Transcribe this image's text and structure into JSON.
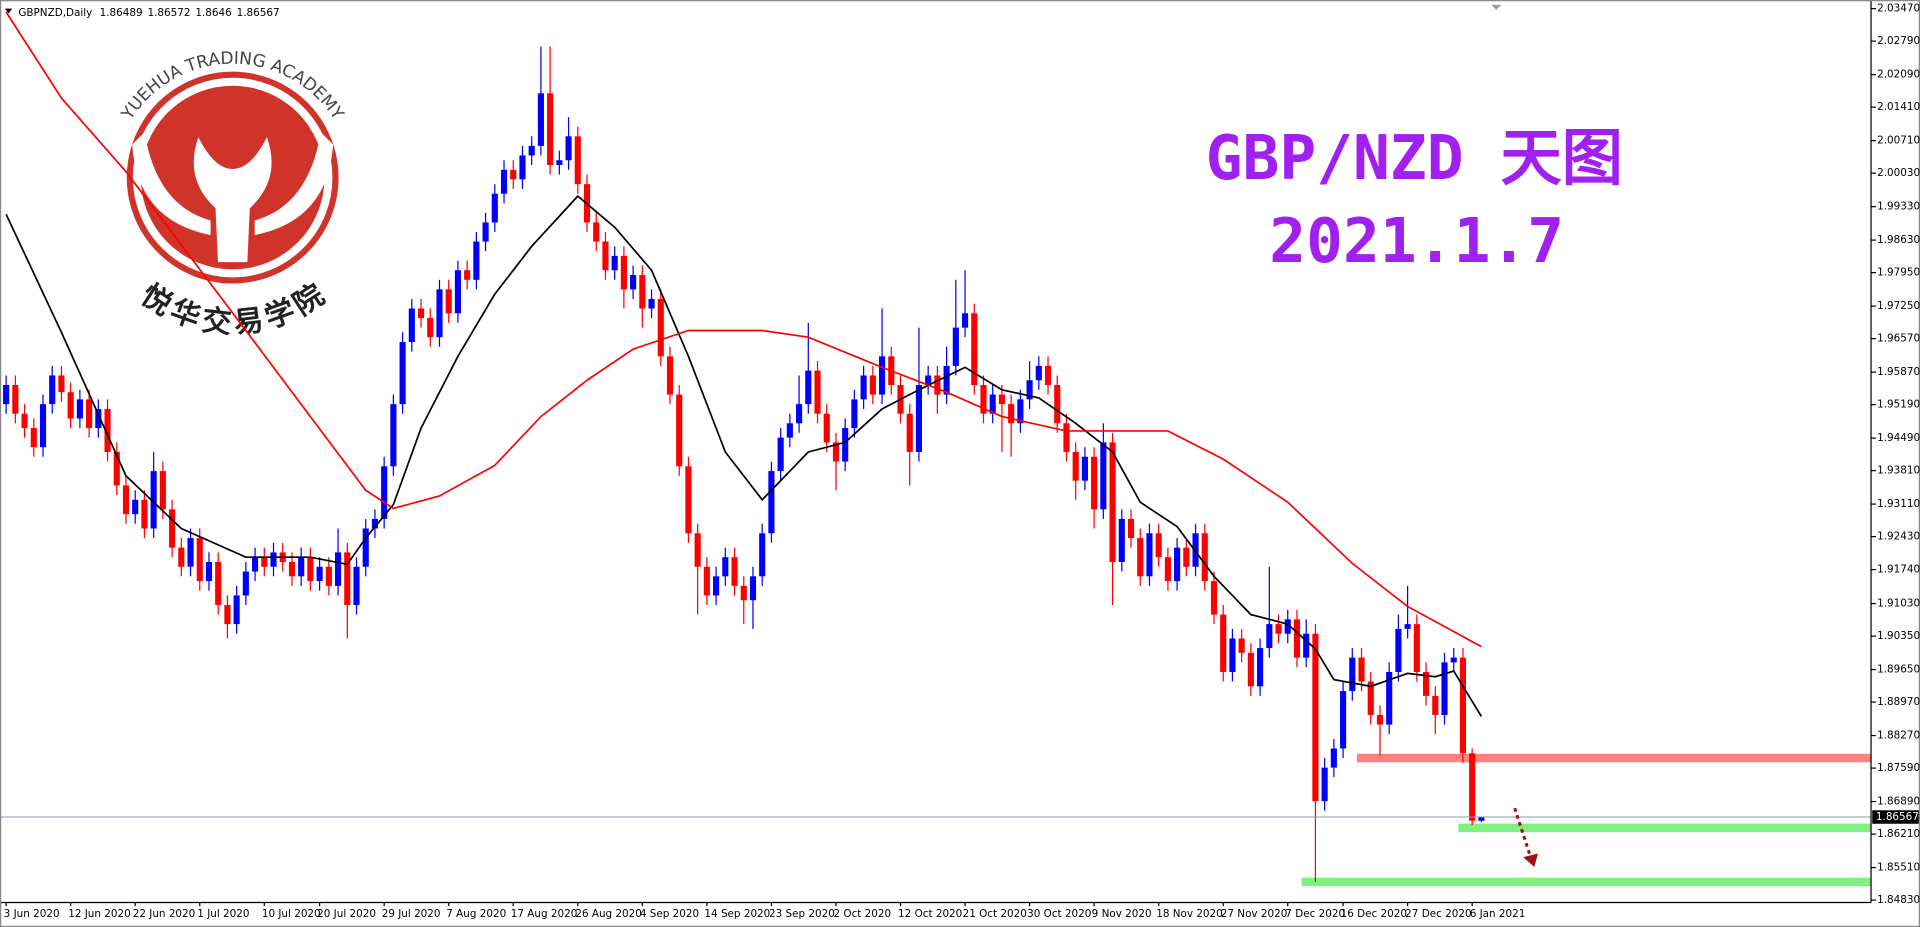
{
  "chart_data": {
    "type": "candlestick",
    "symbol": "GBPNZD,Daily",
    "title": "GBP/NZD 天图",
    "subtitle": "2021.1.7",
    "logo_text": "YUEHUA TRADING ACADEMY",
    "logo_text_cn": "悦华交易学院",
    "up_color": "#0000ff",
    "down_color": "#ff0000",
    "categories": [
      "3 Jun 2020",
      null,
      null,
      null,
      null,
      null,
      null,
      "12 Jun 2020",
      null,
      null,
      null,
      null,
      null,
      null,
      "22 Jun 2020",
      null,
      null,
      null,
      null,
      null,
      null,
      "1 Jul 2020",
      null,
      null,
      null,
      null,
      null,
      null,
      "10 Jul 2020",
      null,
      null,
      null,
      null,
      null,
      "20 Jul 2020",
      null,
      null,
      null,
      null,
      null,
      null,
      "29 Jul 2020",
      null,
      null,
      null,
      null,
      null,
      null,
      "7 Aug 2020",
      null,
      null,
      null,
      null,
      null,
      null,
      "17 Aug 2020",
      null,
      null,
      null,
      null,
      null,
      null,
      "26 Aug 2020",
      null,
      null,
      null,
      null,
      null,
      null,
      "4 Sep 2020",
      null,
      null,
      null,
      null,
      null,
      null,
      "14 Sep 2020",
      null,
      null,
      null,
      null,
      null,
      null,
      "23 Sep 2020",
      null,
      null,
      null,
      null,
      null,
      null,
      "2 Oct 2020",
      null,
      null,
      null,
      null,
      null,
      null,
      "12 Oct 2020",
      null,
      null,
      null,
      null,
      null,
      null,
      "21 Oct 2020",
      null,
      null,
      null,
      null,
      null,
      null,
      "30 Oct 2020",
      null,
      null,
      null,
      null,
      null,
      null,
      "9 Nov 2020",
      null,
      null,
      null,
      null,
      null,
      null,
      "18 Nov 2020",
      null,
      null,
      null,
      null,
      null,
      null,
      "27 Nov 2020",
      null,
      null,
      null,
      null,
      null,
      null,
      "7 Dec 2020",
      null,
      null,
      null,
      null,
      null,
      "16 Dec 2020",
      null,
      null,
      null,
      null,
      null,
      null,
      "27 Dec 2020",
      null,
      null,
      null,
      null,
      null,
      null,
      "6 Jan 2021",
      null
    ],
    "open": [
      1.952,
      1.956,
      1.95,
      1.947,
      1.943,
      1.952,
      1.958,
      1.9545,
      1.949,
      1.953,
      1.947,
      1.951,
      1.942,
      1.935,
      1.929,
      1.932,
      1.926,
      1.938,
      1.93,
      1.922,
      1.918,
      1.924,
      1.915,
      1.919,
      1.91,
      1.906,
      1.912,
      1.917,
      1.92,
      1.918,
      1.921,
      1.919,
      1.916,
      1.92,
      1.915,
      1.918,
      1.914,
      1.921,
      1.91,
      1.918,
      1.926,
      1.928,
      1.939,
      1.952,
      1.965,
      1.972,
      1.97,
      1.966,
      1.976,
      1.971,
      1.98,
      1.978,
      1.986,
      1.99,
      1.996,
      2.001,
      1.999,
      2.004,
      2.006,
      2.017,
      2.002,
      2.003,
      2.008,
      1.998,
      1.99,
      1.986,
      1.98,
      1.983,
      1.976,
      1.979,
      1.972,
      1.974,
      1.962,
      1.954,
      1.939,
      1.925,
      1.918,
      1.912,
      1.916,
      1.92,
      1.914,
      1.911,
      1.916,
      1.925,
      1.938,
      1.945,
      1.948,
      1.952,
      1.959,
      1.95,
      1.944,
      1.94,
      1.947,
      1.953,
      1.958,
      1.954,
      1.962,
      1.956,
      1.95,
      1.942,
      1.956,
      1.958,
      1.954,
      1.96,
      1.968,
      1.971,
      1.956,
      1.95,
      1.954,
      1.952,
      1.948,
      1.953,
      1.957,
      1.96,
      1.956,
      1.948,
      1.942,
      1.936,
      1.941,
      1.93,
      1.944,
      1.919,
      1.928,
      1.924,
      1.916,
      1.925,
      1.92,
      1.915,
      1.922,
      1.918,
      1.925,
      1.915,
      1.908,
      1.896,
      1.903,
      1.9,
      1.893,
      1.901,
      1.906,
      1.904,
      1.907,
      1.899,
      1.904,
      1.869,
      1.876,
      1.88,
      1.892,
      1.899,
      1.894,
      1.887,
      1.885,
      1.896,
      1.905,
      1.906,
      1.896,
      1.891,
      1.887,
      1.898,
      1.899,
      1.879,
      1.86489
    ],
    "high": [
      1.958,
      1.958,
      1.952,
      1.949,
      1.954,
      1.96,
      1.96,
      1.9565,
      1.955,
      1.955,
      1.953,
      1.953,
      1.944,
      1.937,
      1.934,
      1.934,
      1.942,
      1.94,
      1.932,
      1.924,
      1.926,
      1.926,
      1.921,
      1.921,
      1.912,
      1.914,
      1.919,
      1.922,
      1.922,
      1.923,
      1.923,
      1.921,
      1.922,
      1.922,
      1.92,
      1.92,
      1.926,
      1.923,
      1.92,
      1.928,
      1.93,
      1.941,
      1.954,
      1.967,
      1.974,
      1.974,
      1.972,
      1.978,
      1.978,
      1.982,
      1.982,
      1.988,
      1.992,
      1.998,
      2.003,
      2.003,
      2.006,
      2.008,
      2.0268,
      2.0268,
      2.005,
      2.012,
      2.01,
      2.0,
      1.992,
      1.988,
      1.985,
      1.985,
      1.981,
      1.981,
      1.976,
      1.976,
      1.964,
      1.956,
      1.941,
      1.927,
      1.92,
      1.918,
      1.922,
      1.922,
      1.916,
      1.918,
      1.927,
      1.94,
      1.947,
      1.95,
      1.958,
      1.969,
      1.961,
      1.952,
      1.946,
      1.949,
      1.955,
      1.96,
      1.96,
      1.972,
      1.964,
      1.958,
      1.952,
      1.968,
      1.96,
      1.96,
      1.964,
      1.978,
      1.98,
      1.973,
      1.958,
      1.956,
      1.956,
      1.954,
      1.955,
      1.961,
      1.962,
      1.962,
      1.958,
      1.95,
      1.944,
      1.943,
      1.943,
      1.948,
      1.946,
      1.93,
      1.93,
      1.926,
      1.927,
      1.927,
      1.922,
      1.924,
      1.924,
      1.927,
      1.927,
      1.917,
      1.91,
      1.905,
      1.905,
      1.902,
      1.903,
      1.918,
      1.908,
      1.909,
      1.909,
      1.907,
      1.906,
      1.878,
      1.882,
      1.894,
      1.901,
      1.901,
      1.896,
      1.889,
      1.898,
      1.908,
      1.914,
      1.908,
      1.898,
      1.893,
      1.9,
      1.901,
      1.901,
      1.88,
      1.86572
    ],
    "low": [
      1.95,
      1.948,
      1.945,
      1.941,
      1.941,
      1.95,
      1.9525,
      1.947,
      1.947,
      1.945,
      1.945,
      1.94,
      1.933,
      1.927,
      1.927,
      1.924,
      1.924,
      1.928,
      1.92,
      1.916,
      1.916,
      1.913,
      1.913,
      1.908,
      1.903,
      1.904,
      1.91,
      1.915,
      1.916,
      1.916,
      1.917,
      1.914,
      1.914,
      1.913,
      1.913,
      1.912,
      1.912,
      1.903,
      1.908,
      1.916,
      1.924,
      1.926,
      1.937,
      1.95,
      1.963,
      1.968,
      1.964,
      1.964,
      1.969,
      1.969,
      1.976,
      1.976,
      1.984,
      1.988,
      1.994,
      1.997,
      1.997,
      2.002,
      2.004,
      2.0,
      2.0,
      2.001,
      1.996,
      1.988,
      1.984,
      1.978,
      1.978,
      1.972,
      1.974,
      1.968,
      1.97,
      1.96,
      1.952,
      1.937,
      1.923,
      1.908,
      1.91,
      1.91,
      1.914,
      1.912,
      1.906,
      1.905,
      1.914,
      1.923,
      1.936,
      1.943,
      1.946,
      1.95,
      1.948,
      1.942,
      1.934,
      1.938,
      1.945,
      1.951,
      1.952,
      1.952,
      1.954,
      1.948,
      1.935,
      1.94,
      1.954,
      1.95,
      1.952,
      1.958,
      1.966,
      1.954,
      1.948,
      1.948,
      1.942,
      1.941,
      1.946,
      1.951,
      1.955,
      1.954,
      1.946,
      1.94,
      1.932,
      1.934,
      1.926,
      1.928,
      1.91,
      1.917,
      1.922,
      1.914,
      1.914,
      1.918,
      1.913,
      1.913,
      1.916,
      1.916,
      1.913,
      1.906,
      1.894,
      1.894,
      1.898,
      1.891,
      1.891,
      1.899,
      1.902,
      1.902,
      1.897,
      1.897,
      1.8521,
      1.867,
      1.874,
      1.878,
      1.89,
      1.892,
      1.885,
      1.8785,
      1.883,
      1.894,
      1.903,
      1.894,
      1.889,
      1.883,
      1.885,
      1.896,
      1.877,
      1.864,
      1.8646
    ],
    "close": [
      1.956,
      1.95,
      1.947,
      1.943,
      1.952,
      1.958,
      1.9545,
      1.949,
      1.953,
      1.947,
      1.951,
      1.942,
      1.935,
      1.929,
      1.932,
      1.926,
      1.938,
      1.93,
      1.922,
      1.918,
      1.924,
      1.915,
      1.919,
      1.91,
      1.906,
      1.912,
      1.917,
      1.92,
      1.918,
      1.921,
      1.919,
      1.916,
      1.92,
      1.915,
      1.918,
      1.914,
      1.921,
      1.91,
      1.918,
      1.926,
      1.928,
      1.939,
      1.952,
      1.965,
      1.972,
      1.97,
      1.966,
      1.976,
      1.971,
      1.98,
      1.978,
      1.986,
      1.99,
      1.996,
      2.001,
      1.999,
      2.004,
      2.006,
      2.017,
      2.002,
      2.003,
      2.008,
      1.998,
      1.99,
      1.986,
      1.98,
      1.983,
      1.976,
      1.979,
      1.972,
      1.974,
      1.962,
      1.954,
      1.939,
      1.925,
      1.918,
      1.912,
      1.916,
      1.92,
      1.914,
      1.911,
      1.916,
      1.925,
      1.938,
      1.945,
      1.948,
      1.952,
      1.959,
      1.95,
      1.944,
      1.94,
      1.947,
      1.953,
      1.958,
      1.954,
      1.962,
      1.956,
      1.95,
      1.942,
      1.956,
      1.958,
      1.954,
      1.96,
      1.968,
      1.971,
      1.956,
      1.95,
      1.954,
      1.952,
      1.948,
      1.953,
      1.957,
      1.96,
      1.956,
      1.948,
      1.942,
      1.936,
      1.941,
      1.93,
      1.944,
      1.919,
      1.928,
      1.924,
      1.916,
      1.925,
      1.92,
      1.915,
      1.922,
      1.918,
      1.925,
      1.915,
      1.908,
      1.896,
      1.903,
      1.9,
      1.893,
      1.901,
      1.906,
      1.904,
      1.907,
      1.899,
      1.904,
      1.869,
      1.876,
      1.88,
      1.892,
      1.899,
      1.894,
      1.887,
      1.885,
      1.896,
      1.905,
      1.906,
      1.896,
      1.891,
      1.887,
      1.898,
      1.899,
      1.879,
      1.8649,
      1.86567
    ],
    "moving_averages": [
      {
        "color": "#000000",
        "x": [
          0,
          6,
          13,
          19,
          26,
          33,
          37,
          39,
          42,
          45,
          49,
          53,
          57,
          62,
          66,
          70,
          74,
          78,
          82,
          87,
          91,
          95,
          99,
          104,
          108,
          112,
          116,
          120,
          123,
          127,
          131,
          135,
          139,
          142,
          144,
          148,
          152,
          155,
          157,
          160
        ],
        "values": [
          1.9917,
          1.967,
          1.937,
          1.926,
          1.92,
          1.92,
          1.9185,
          1.924,
          1.931,
          1.947,
          1.962,
          1.975,
          1.985,
          1.9955,
          1.989,
          1.98,
          1.962,
          1.942,
          1.932,
          1.942,
          1.944,
          1.951,
          1.955,
          1.9597,
          1.955,
          1.9533,
          1.948,
          1.942,
          1.9315,
          1.9264,
          1.916,
          1.908,
          1.906,
          1.9008,
          1.8944,
          1.893,
          1.8957,
          1.895,
          1.8962,
          1.8867
        ]
      },
      {
        "color": "#ff0000",
        "x": [
          0,
          6,
          13,
          19,
          26,
          33,
          39,
          42,
          47,
          53,
          58,
          63,
          68,
          74,
          82,
          87,
          95,
          102,
          108,
          115,
          126,
          132,
          139,
          146,
          152,
          160
        ],
        "values": [
          2.034,
          2.016,
          2.0006,
          1.9853,
          1.9674,
          1.9494,
          1.934,
          1.9302,
          1.9328,
          1.9392,
          1.9494,
          1.957,
          1.9635,
          1.9674,
          1.9674,
          1.966,
          1.9597,
          1.9545,
          1.9494,
          1.9464,
          1.9464,
          1.9405,
          1.9315,
          1.9187,
          1.9097,
          1.9013
        ]
      }
    ],
    "levels": [
      {
        "value": 1.878,
        "from": 146.5,
        "color": "#ff8080"
      },
      {
        "value": 1.8634,
        "from": 157.5,
        "color": "#80f080"
      },
      {
        "value": 1.8521,
        "from": 140.5,
        "color": "#80f080"
      }
    ],
    "ylim": [
      1.8478,
      2.0365
    ],
    "yticks": [
      {
        "value": 2.0347,
        "label": "2.03470"
      },
      {
        "value": 2.0279,
        "label": "2.02790"
      },
      {
        "value": 2.0209,
        "label": "2.02090"
      },
      {
        "value": 2.0141,
        "label": "2.01410"
      },
      {
        "value": 2.0071,
        "label": "2.00710"
      },
      {
        "value": 2.0003,
        "label": "2.00030"
      },
      {
        "value": 1.9933,
        "label": "1.99330"
      },
      {
        "value": 1.9863,
        "label": "1.98630"
      },
      {
        "value": 1.9795,
        "label": "1.97950"
      },
      {
        "value": 1.9725,
        "label": "1.97250"
      },
      {
        "value": 1.9657,
        "label": "1.96570"
      },
      {
        "value": 1.9587,
        "label": "1.95870"
      },
      {
        "value": 1.9519,
        "label": "1.95190"
      },
      {
        "value": 1.9449,
        "label": "1.94490"
      },
      {
        "value": 1.9381,
        "label": "1.93810"
      },
      {
        "value": 1.9311,
        "label": "1.93110"
      },
      {
        "value": 1.9243,
        "label": "1.92430"
      },
      {
        "value": 1.9174,
        "label": "1.91740"
      },
      {
        "value": 1.9103,
        "label": "1.91030"
      },
      {
        "value": 1.9035,
        "label": "1.90350"
      },
      {
        "value": 1.8965,
        "label": "1.89650"
      },
      {
        "value": 1.8897,
        "label": "1.88970"
      },
      {
        "value": 1.8827,
        "label": "1.88270"
      },
      {
        "value": 1.8759,
        "label": "1.87590"
      },
      {
        "value": 1.8689,
        "label": "1.86890"
      },
      {
        "value": 1.8621,
        "label": "1.86210"
      },
      {
        "value": 1.8551,
        "label": "1.85510"
      },
      {
        "value": 1.8483,
        "label": "1.84830"
      }
    ]
  }
}
